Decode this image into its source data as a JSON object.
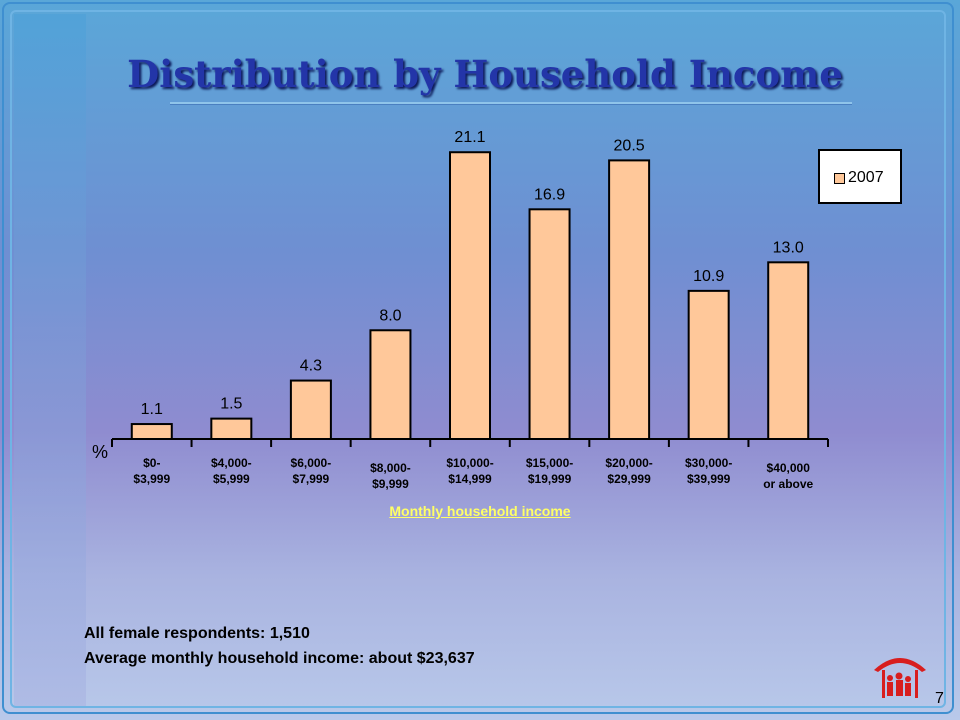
{
  "title": "Distribution by Household Income",
  "notes": {
    "respondents": "All female respondents:  1,510",
    "average": "Average monthly household income: about $23,637"
  },
  "page_number": "7",
  "colors": {
    "bar": "#ffc89a",
    "title": "#2335a8",
    "xlabel": "#ffff66"
  },
  "chart_data": {
    "type": "bar",
    "title": "",
    "xlabel": "Monthly household income",
    "ylabel": "%",
    "ylim": [
      0,
      22
    ],
    "legend_position": "top-right",
    "categories": [
      [
        "$0-",
        "$3,999"
      ],
      [
        "$4,000-",
        "$5,999"
      ],
      [
        "$6,000-",
        "$7,999"
      ],
      [
        "$8,000-",
        "$9,999"
      ],
      [
        "$10,000-",
        "$14,999"
      ],
      [
        "$15,000-",
        "$19,999"
      ],
      [
        "$20,000-",
        "$29,999"
      ],
      [
        "$30,000-",
        "$39,999"
      ],
      [
        "$40,000",
        "or above"
      ]
    ],
    "series": [
      {
        "name": "2007",
        "values": [
          1.1,
          1.5,
          4.3,
          8.0,
          21.1,
          16.9,
          20.5,
          10.9,
          13.0
        ]
      }
    ],
    "data_labels": [
      "1.1",
      "1.5",
      "4.3",
      "8.0",
      "21.1",
      "16.9",
      "20.5",
      "10.9",
      "13.0"
    ]
  }
}
